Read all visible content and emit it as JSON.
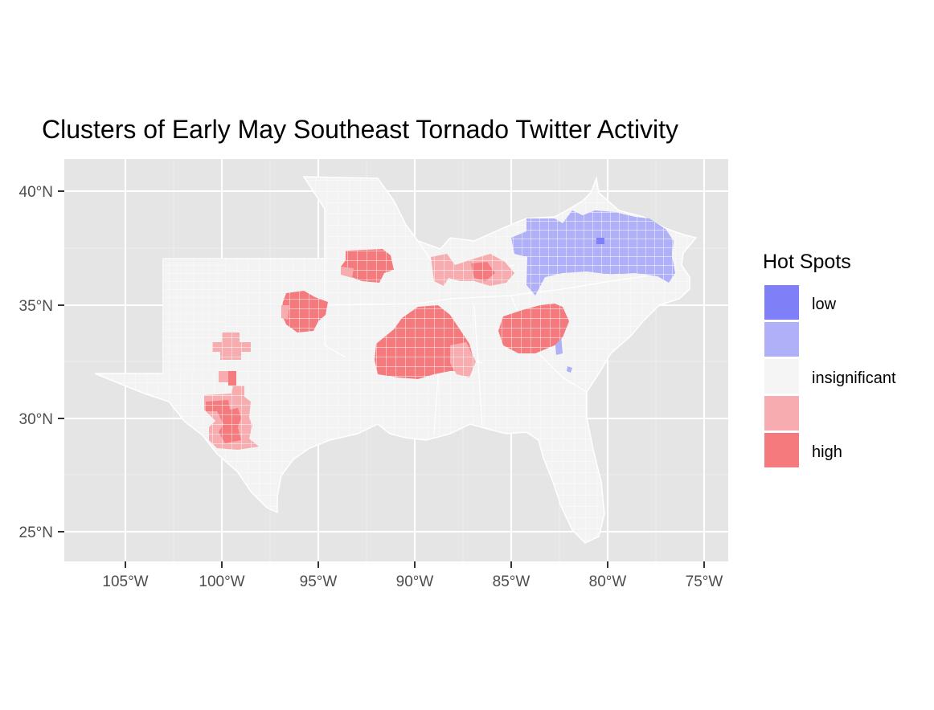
{
  "title": "Clusters of Early May Southeast Tornado Twitter Activity",
  "axes": {
    "x_ticks": [
      "105°W",
      "100°W",
      "95°W",
      "90°W",
      "85°W",
      "80°W",
      "75°W"
    ],
    "y_ticks": [
      "40°N",
      "35°N",
      "30°N",
      "25°N"
    ]
  },
  "legend": {
    "title": "Hot Spots",
    "items": [
      {
        "label": "low",
        "color": "#7f7ff7"
      },
      {
        "label": "",
        "color": "#b0b0f8"
      },
      {
        "label": "insignificant",
        "color": "#f5f5f5"
      },
      {
        "label": "",
        "color": "#f7adb0"
      },
      {
        "label": "high",
        "color": "#f47a7e"
      }
    ]
  },
  "colors": {
    "panel": "#e5e5e5",
    "grid": "#ffffff",
    "land": "#f2f2f2",
    "county_lines": "#ffffff",
    "low": "#7f7ff7",
    "low_moderate": "#b0b0f8",
    "high_moderate": "#f7adb0",
    "high": "#f47a7e"
  }
}
